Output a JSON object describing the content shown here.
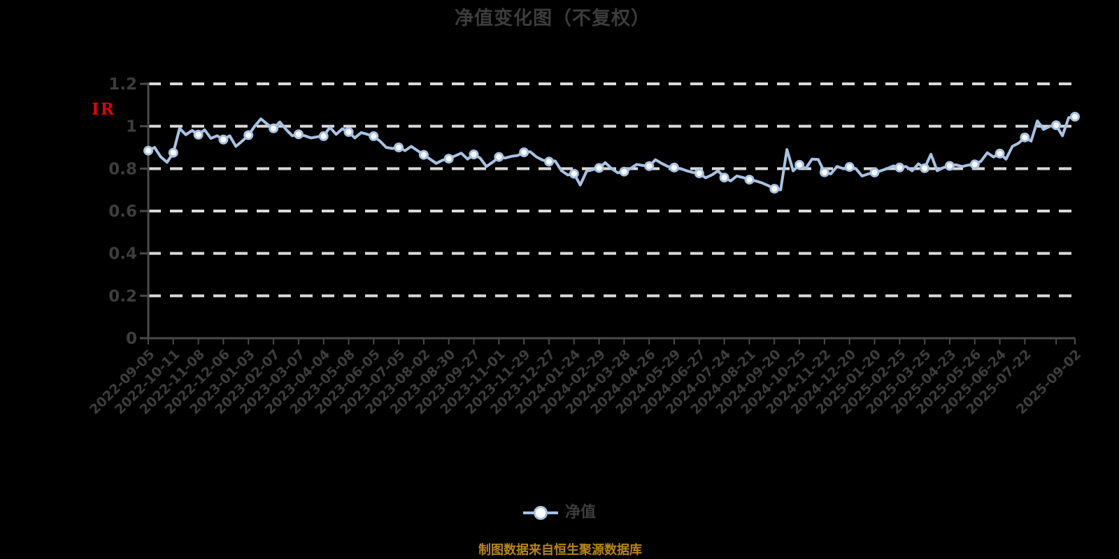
{
  "title": {
    "text": "净值变化图（不复权）"
  },
  "y_axis_artifact": {
    "text": "IR",
    "color": "#e60000"
  },
  "legend": {
    "label": "净值",
    "marker_color": "#a8c2e2"
  },
  "footer": {
    "text": "制图数据来自恒生聚源数据库",
    "color": "#b8860b"
  },
  "chart_data": {
    "type": "line",
    "title": "净值变化图（不复权）",
    "xlabel": "",
    "ylabel": "",
    "ylim": [
      0,
      1.2
    ],
    "yticks": [
      0,
      0.2,
      0.4,
      0.6,
      0.8,
      1,
      1.2
    ],
    "ytick_labels": [
      "0",
      "0.2",
      "0.4",
      "0.6",
      "0.8",
      "1",
      "1.2"
    ],
    "grid": {
      "dashed": true,
      "color": "#d9d9d9"
    },
    "axis_color": "#4a4a4a",
    "label_color": "#3d3d3d",
    "legend_position": "bottom",
    "x_tick_labels": [
      "2022-09-05",
      "2022-10-11",
      "2022-11-08",
      "2022-12-06",
      "2023-01-03",
      "2023-02-07",
      "2023-03-07",
      "2023-04-04",
      "2023-05-08",
      "2023-06-05",
      "2023-07-05",
      "2023-08-02",
      "2023-08-30",
      "2023-09-27",
      "2023-11-01",
      "2023-11-29",
      "2023-12-27",
      "2024-01-24",
      "2024-02-29",
      "2024-03-28",
      "2024-04-26",
      "2024-05-29",
      "2024-06-27",
      "2024-07-24",
      "2024-08-21",
      "2024-09-20",
      "2024-10-25",
      "2024-11-22",
      "2024-12-20",
      "2025-01-20",
      "2025-02-25",
      "2025-03-25",
      "2025-04-23",
      "2025-05-26",
      "2025-06-24",
      "2025-07-22",
      "2025-09-02"
    ],
    "x_tick_point_indices": [
      0,
      4,
      8,
      12,
      16,
      20,
      24,
      28,
      32,
      36,
      40,
      44,
      48,
      52,
      56,
      60,
      64,
      68,
      72,
      76,
      80,
      84,
      88,
      92,
      96,
      100,
      104,
      108,
      112,
      116,
      120,
      124,
      128,
      132,
      136,
      140,
      148
    ],
    "extra_tick_indices": [
      145
    ],
    "series": [
      {
        "name": "净值",
        "color": "#a8c2e2",
        "marker": {
          "fill": "#ffffff",
          "stroke": "#a8c2e2"
        },
        "marker_indices": [
          0,
          4,
          8,
          12,
          16,
          20,
          24,
          28,
          32,
          36,
          40,
          44,
          48,
          52,
          56,
          60,
          64,
          68,
          72,
          76,
          80,
          84,
          88,
          92,
          96,
          100,
          104,
          108,
          112,
          116,
          120,
          124,
          128,
          132,
          136,
          140,
          145,
          148
        ],
        "values": [
          0.885,
          0.9,
          0.855,
          0.83,
          0.875,
          0.99,
          0.96,
          0.98,
          0.96,
          0.983,
          0.943,
          0.955,
          0.937,
          0.955,
          0.905,
          0.93,
          0.958,
          1.0,
          1.035,
          1.01,
          0.99,
          1.02,
          0.985,
          0.955,
          0.962,
          0.955,
          0.945,
          0.95,
          0.953,
          0.995,
          0.962,
          0.988,
          0.973,
          0.945,
          0.97,
          0.962,
          0.953,
          0.93,
          0.9,
          0.895,
          0.9,
          0.885,
          0.905,
          0.885,
          0.865,
          0.845,
          0.825,
          0.84,
          0.847,
          0.86,
          0.873,
          0.845,
          0.867,
          0.85,
          0.81,
          0.83,
          0.855,
          0.85,
          0.858,
          0.862,
          0.877,
          0.88,
          0.855,
          0.84,
          0.833,
          0.836,
          0.79,
          0.77,
          0.776,
          0.723,
          0.788,
          0.795,
          0.803,
          0.828,
          0.8,
          0.78,
          0.786,
          0.8,
          0.82,
          0.815,
          0.812,
          0.842,
          0.825,
          0.81,
          0.805,
          0.8,
          0.79,
          0.782,
          0.778,
          0.757,
          0.77,
          0.79,
          0.758,
          0.742,
          0.765,
          0.758,
          0.748,
          0.742,
          0.733,
          0.72,
          0.705,
          0.7,
          0.89,
          0.79,
          0.818,
          0.8,
          0.845,
          0.843,
          0.783,
          0.775,
          0.81,
          0.8,
          0.808,
          0.8,
          0.765,
          0.775,
          0.782,
          0.79,
          0.8,
          0.813,
          0.805,
          0.81,
          0.79,
          0.823,
          0.802,
          0.868,
          0.79,
          0.805,
          0.813,
          0.818,
          0.81,
          0.817,
          0.82,
          0.835,
          0.875,
          0.855,
          0.871,
          0.845,
          0.905,
          0.92,
          0.947,
          0.93,
          1.025,
          0.985,
          1.0,
          1.005,
          0.955,
          1.04,
          1.045
        ]
      }
    ]
  }
}
